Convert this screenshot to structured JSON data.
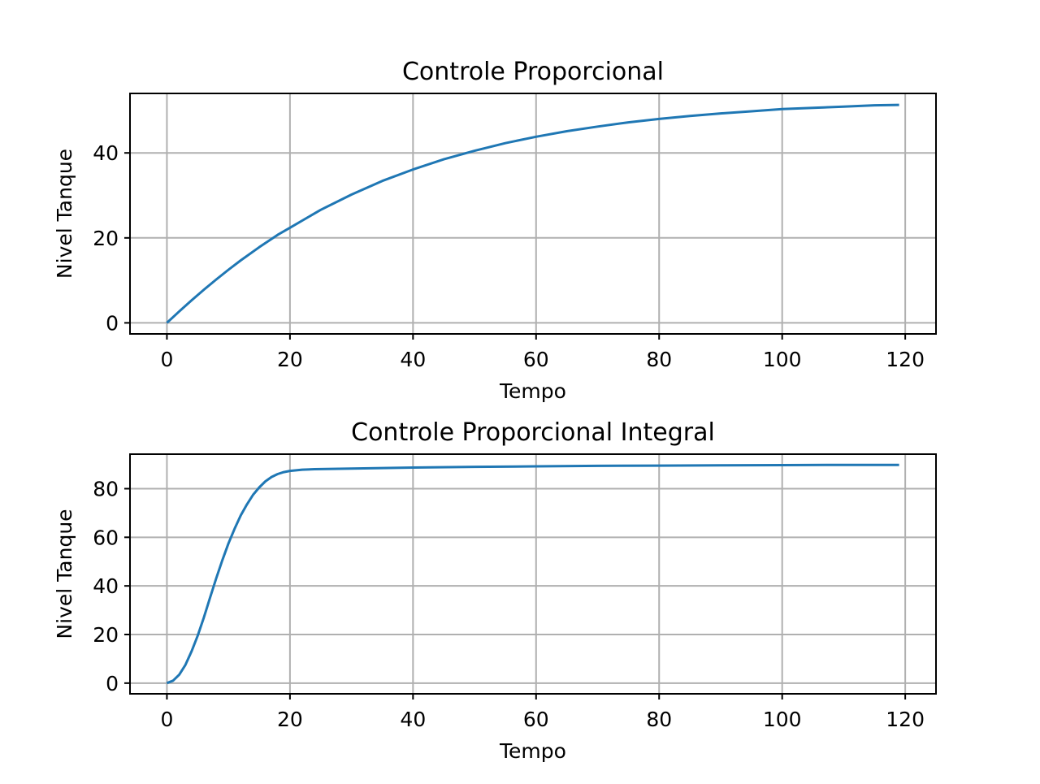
{
  "chart_data": [
    {
      "type": "line",
      "title": "Controle Proporcional",
      "xlabel": "Tempo",
      "ylabel": "Nivel Tanque",
      "xlim": [
        -6,
        125
      ],
      "ylim": [
        -2.6,
        54.0
      ],
      "xticks": [
        0,
        20,
        40,
        60,
        80,
        100,
        120
      ],
      "yticks": [
        0,
        20,
        40
      ],
      "grid": true,
      "series": [
        {
          "color": "#1f77b4",
          "x": [
            0,
            2,
            4,
            6,
            8,
            10,
            12,
            15,
            18,
            20,
            25,
            30,
            35,
            40,
            45,
            50,
            55,
            60,
            65,
            70,
            75,
            80,
            85,
            90,
            95,
            100,
            105,
            110,
            115,
            119
          ],
          "y": [
            0,
            2.7,
            5.3,
            7.8,
            10.2,
            12.5,
            14.7,
            17.8,
            20.7,
            22.4,
            26.6,
            30.2,
            33.4,
            36.1,
            38.5,
            40.5,
            42.3,
            43.8,
            45.1,
            46.2,
            47.2,
            48.0,
            48.7,
            49.3,
            49.8,
            50.3,
            50.6,
            50.9,
            51.2,
            51.3
          ]
        }
      ]
    },
    {
      "type": "line",
      "title": "Controle Proporcional Integral",
      "xlabel": "Tempo",
      "ylabel": "Nivel Tanque",
      "xlim": [
        -6,
        125
      ],
      "ylim": [
        -4.4,
        94.2
      ],
      "xticks": [
        0,
        20,
        40,
        60,
        80,
        100,
        120
      ],
      "yticks": [
        0,
        20,
        40,
        60,
        80
      ],
      "grid": true,
      "series": [
        {
          "color": "#1f77b4",
          "x": [
            0,
            1,
            2,
            3,
            4,
            5,
            6,
            7,
            8,
            9,
            10,
            11,
            12,
            13,
            14,
            15,
            16,
            17,
            18,
            19,
            20,
            22,
            24,
            26,
            28,
            30,
            35,
            40,
            50,
            60,
            70,
            80,
            90,
            100,
            110,
            119
          ],
          "y": [
            0,
            1.0,
            3.5,
            7.5,
            13.0,
            19.5,
            27.0,
            35.0,
            43.0,
            50.5,
            57.5,
            63.5,
            69.0,
            73.5,
            77.5,
            80.5,
            83.0,
            84.8,
            86.0,
            86.8,
            87.3,
            87.8,
            88.0,
            88.1,
            88.2,
            88.3,
            88.5,
            88.7,
            89.0,
            89.2,
            89.4,
            89.5,
            89.6,
            89.7,
            89.8,
            89.8
          ]
        }
      ]
    }
  ]
}
